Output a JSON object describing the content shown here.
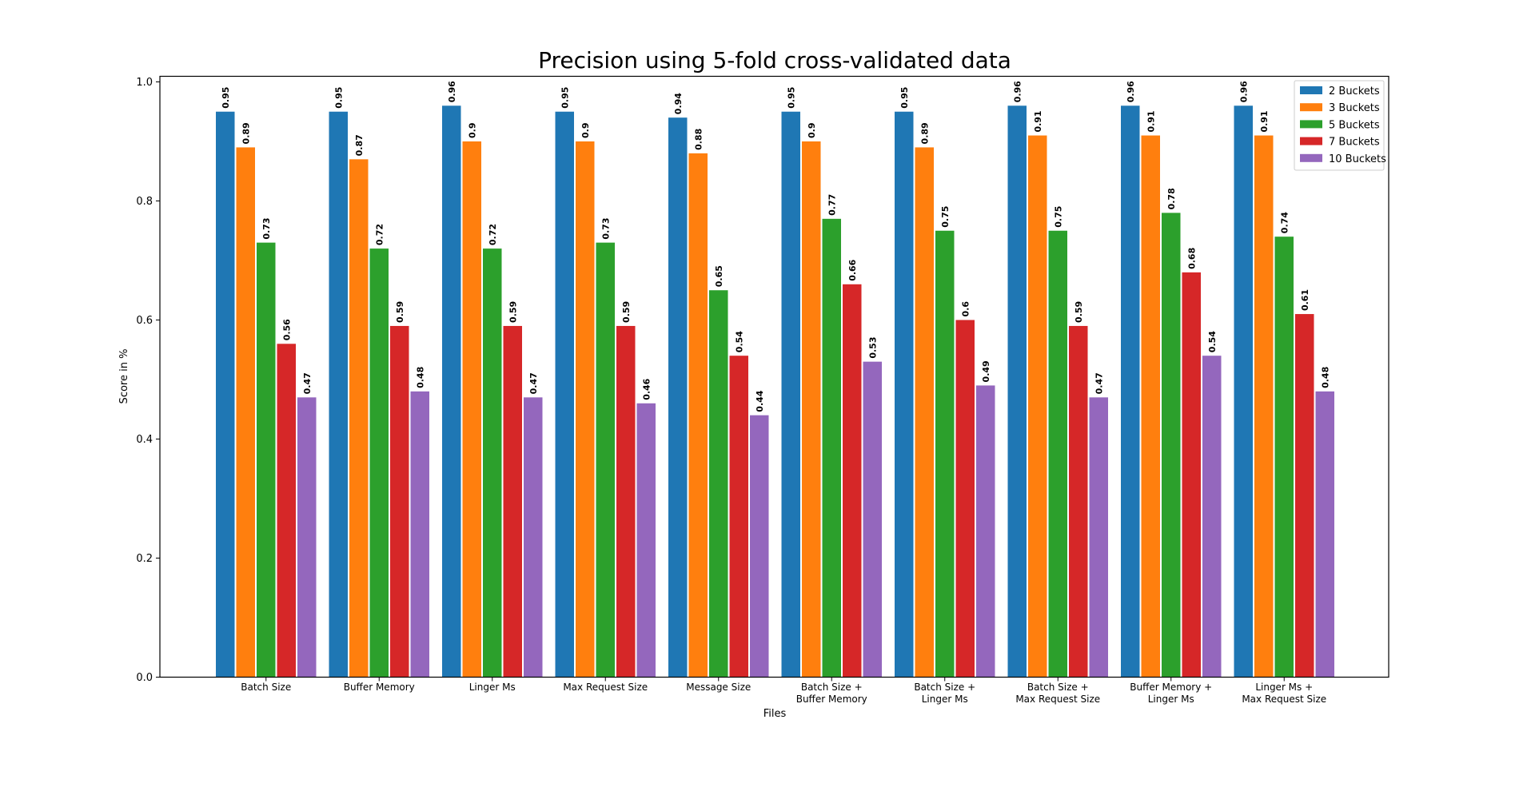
{
  "chart_data": {
    "type": "bar",
    "title": "Precision using 5-fold cross-validated data",
    "xlabel": "Files",
    "ylabel": "Score in %",
    "ylim": [
      0,
      1.0
    ],
    "yticks": [
      "0.0",
      "0.2",
      "0.4",
      "0.6",
      "0.8",
      "1.0"
    ],
    "grid": false,
    "legend_position": "top-right",
    "categories": [
      [
        "Batch Size"
      ],
      [
        "Buffer Memory"
      ],
      [
        "Linger Ms"
      ],
      [
        "Max Request Size"
      ],
      [
        "Message Size"
      ],
      [
        "Batch Size +",
        "Buffer Memory"
      ],
      [
        "Batch Size +",
        "Linger Ms"
      ],
      [
        "Batch Size +",
        "Max Request Size"
      ],
      [
        "Buffer Memory +",
        "Linger Ms"
      ],
      [
        "Linger Ms +",
        "Max Request Size"
      ]
    ],
    "series": [
      {
        "name": "2 Buckets",
        "color": "#1f77b4",
        "values": [
          0.95,
          0.95,
          0.96,
          0.95,
          0.94,
          0.95,
          0.95,
          0.96,
          0.96,
          0.96
        ],
        "labels": [
          "0.95",
          "0.95",
          "0.96",
          "0.95",
          "0.94",
          "0.95",
          "0.95",
          "0.96",
          "0.96",
          "0.96"
        ]
      },
      {
        "name": "3 Buckets",
        "color": "#ff7f0e",
        "values": [
          0.89,
          0.87,
          0.9,
          0.9,
          0.88,
          0.9,
          0.89,
          0.91,
          0.91,
          0.91
        ],
        "labels": [
          "0.89",
          "0.87",
          "0.9",
          "0.9",
          "0.88",
          "0.9",
          "0.89",
          "0.91",
          "0.91",
          "0.91"
        ]
      },
      {
        "name": "5 Buckets",
        "color": "#2ca02c",
        "values": [
          0.73,
          0.72,
          0.72,
          0.73,
          0.65,
          0.77,
          0.75,
          0.75,
          0.78,
          0.74
        ],
        "labels": [
          "0.73",
          "0.72",
          "0.72",
          "0.73",
          "0.65",
          "0.77",
          "0.75",
          "0.75",
          "0.78",
          "0.74"
        ]
      },
      {
        "name": "7 Buckets",
        "color": "#d62728",
        "values": [
          0.56,
          0.59,
          0.59,
          0.59,
          0.54,
          0.66,
          0.6,
          0.59,
          0.68,
          0.61
        ],
        "labels": [
          "0.56",
          "0.59",
          "0.59",
          "0.59",
          "0.54",
          "0.66",
          "0.6",
          "0.59",
          "0.68",
          "0.61"
        ]
      },
      {
        "name": "10 Buckets",
        "color": "#9467bd",
        "values": [
          0.47,
          0.48,
          0.47,
          0.46,
          0.44,
          0.53,
          0.49,
          0.47,
          0.54,
          0.48
        ],
        "labels": [
          "0.47",
          "0.48",
          "0.47",
          "0.46",
          "0.44",
          "0.53",
          "0.49",
          "0.47",
          "0.54",
          "0.48"
        ]
      }
    ]
  }
}
